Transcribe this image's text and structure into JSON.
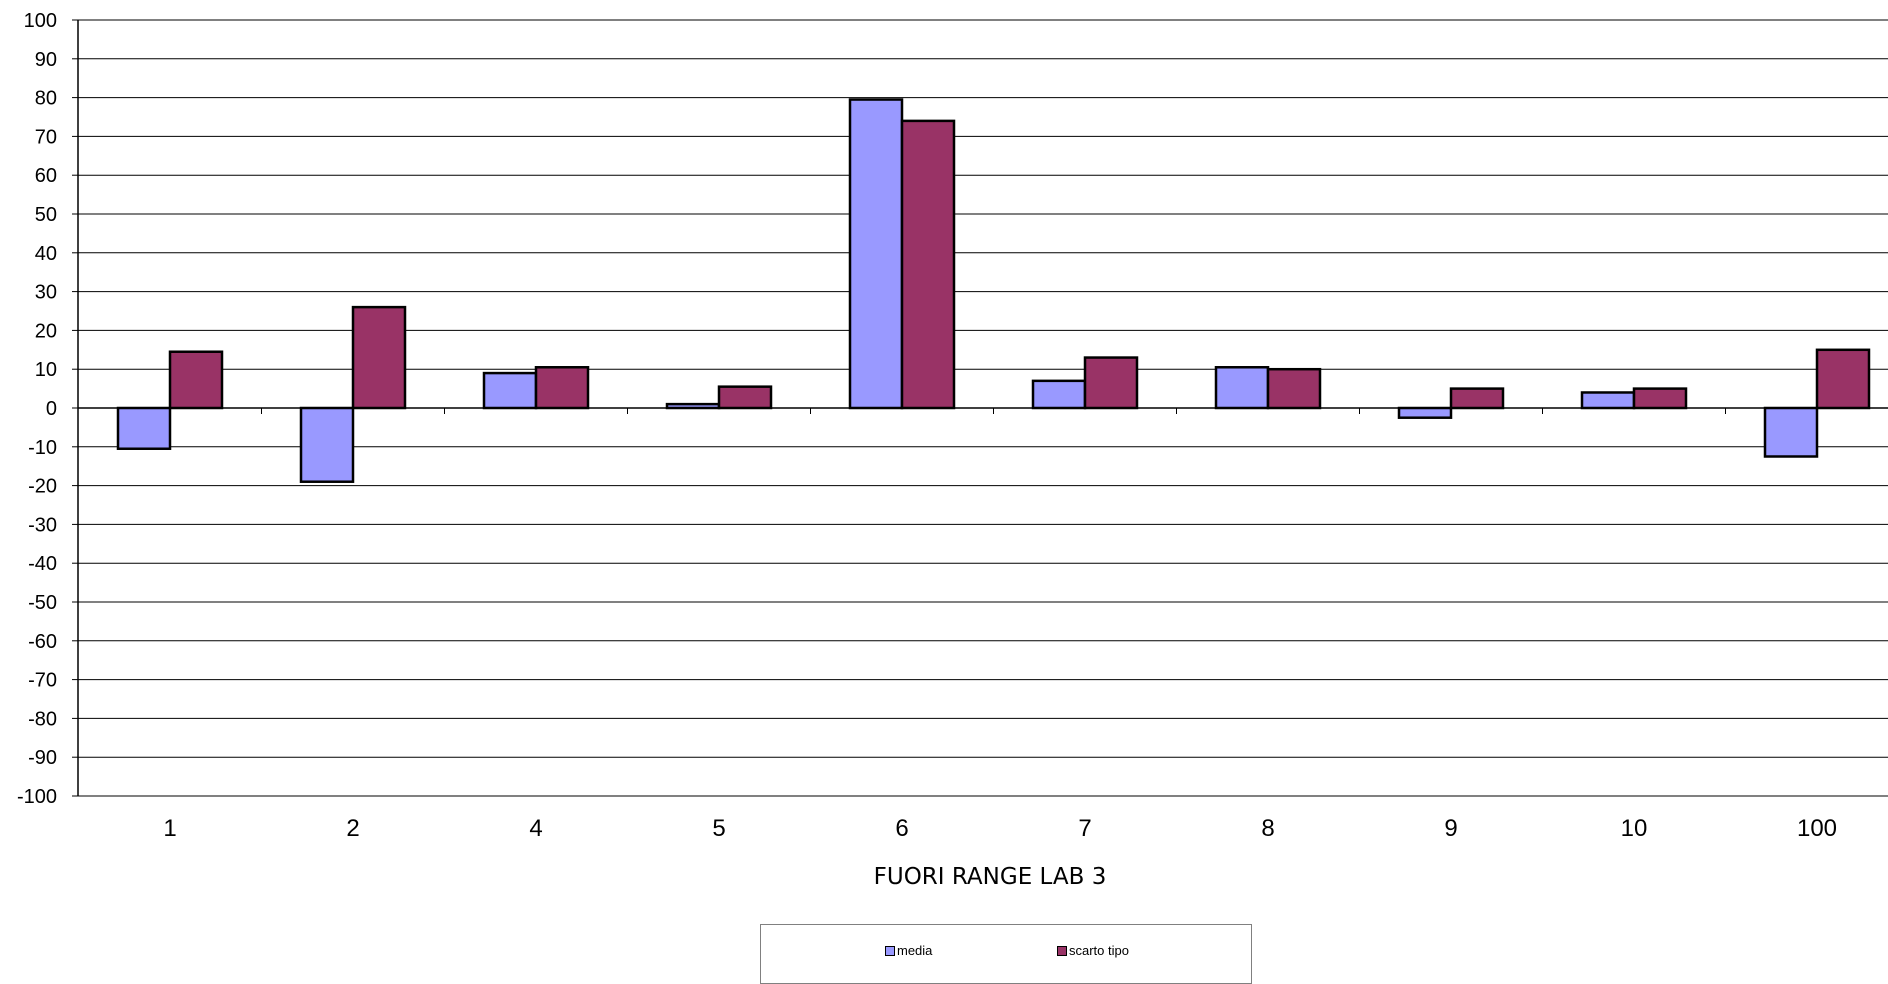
{
  "chart_data": {
    "type": "bar",
    "title": "",
    "xlabel": "FUORI RANGE LAB 3",
    "ylabel": "",
    "categories": [
      "1",
      "2",
      "4",
      "5",
      "6",
      "7",
      "8",
      "9",
      "10",
      "100"
    ],
    "series": [
      {
        "name": "media",
        "color": "#9999ff",
        "values": [
          -10.5,
          -19,
          9,
          1,
          79.5,
          7,
          10.5,
          -2.5,
          4,
          -12.5
        ]
      },
      {
        "name": "scarto tipo",
        "color": "#993366",
        "values": [
          14.5,
          26,
          10.5,
          5.5,
          74,
          13,
          10,
          5,
          5,
          15
        ]
      }
    ],
    "ylim": [
      -100,
      100
    ],
    "yticks": [
      100,
      90,
      80,
      70,
      60,
      50,
      40,
      30,
      20,
      10,
      0,
      -10,
      -20,
      -30,
      -40,
      -50,
      -60,
      -70,
      -80,
      -90,
      -100
    ],
    "grid": true,
    "legend_position": "bottom"
  }
}
